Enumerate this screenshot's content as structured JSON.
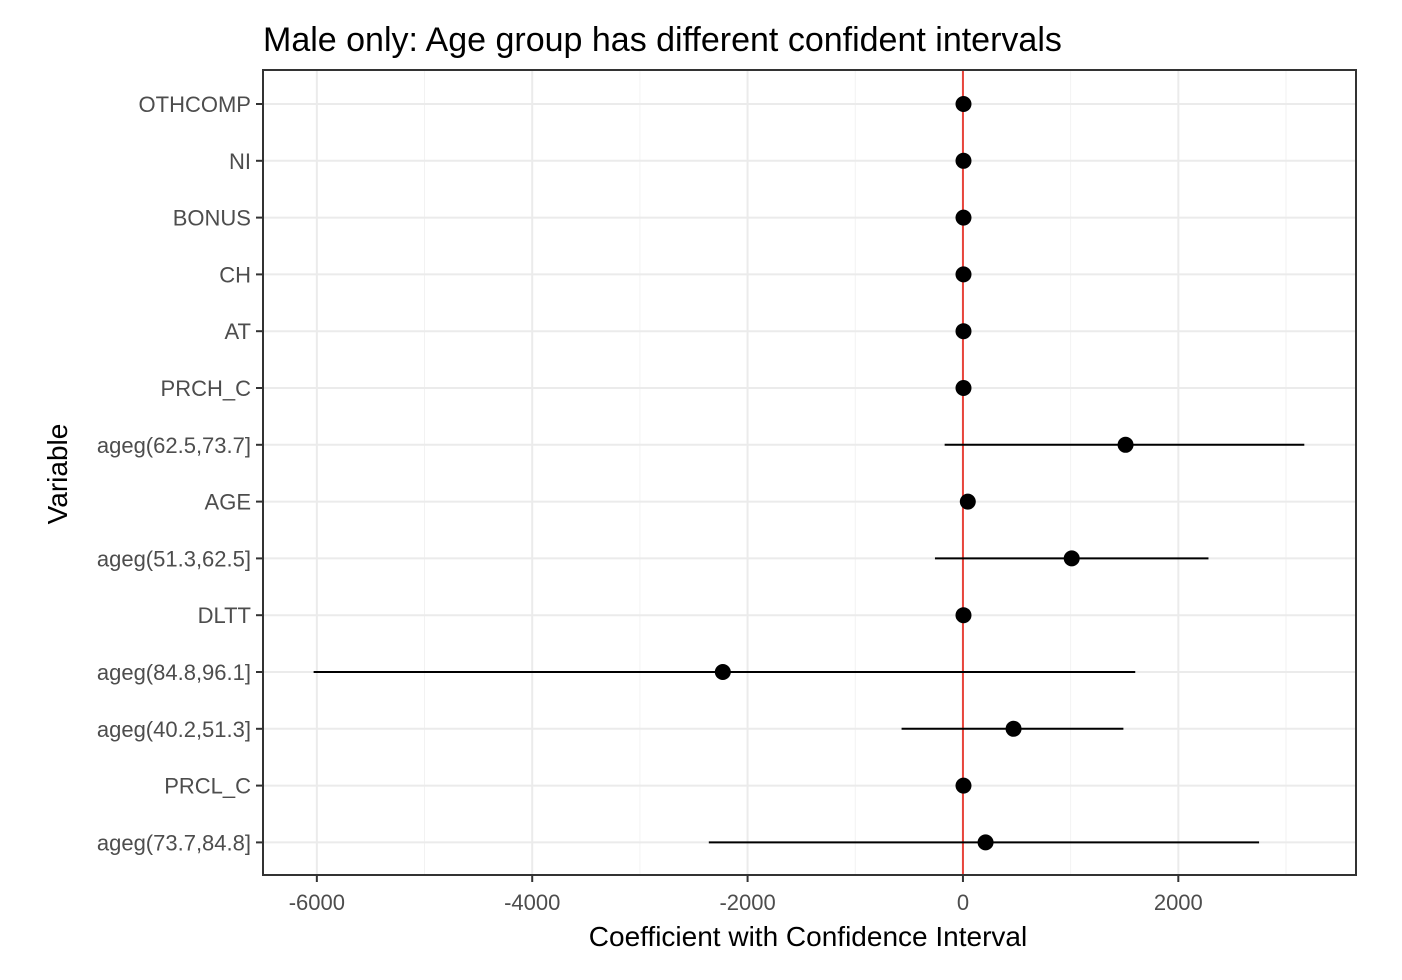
{
  "chart_data": {
    "type": "scatter",
    "subtype": "coefficient-plot-with-confidence-intervals",
    "title": "Male only: Age group has different confident intervals",
    "xlabel": "Coefficient with Confidence Interval",
    "ylabel": "Variable",
    "xlim": [
      -6500,
      3650
    ],
    "x_ticks": [
      -6000,
      -4000,
      -2000,
      0,
      2000
    ],
    "x_tick_labels": [
      "-6000",
      "-4000",
      "-2000",
      "0",
      "2000"
    ],
    "grid": true,
    "legend": "none",
    "reference_line": {
      "x": 0,
      "color": "#e8453c"
    },
    "colors": {
      "point": "#000000",
      "interval": "#000000",
      "grid": "#ebebeb",
      "panel_border": "#333333"
    },
    "points": [
      {
        "variable": "OTHCOMP",
        "estimate": 5,
        "lower": 5,
        "upper": 5
      },
      {
        "variable": "NI",
        "estimate": 5,
        "lower": 5,
        "upper": 5
      },
      {
        "variable": "BONUS",
        "estimate": 5,
        "lower": 5,
        "upper": 5
      },
      {
        "variable": "CH",
        "estimate": 5,
        "lower": 5,
        "upper": 5
      },
      {
        "variable": "AT",
        "estimate": 5,
        "lower": 5,
        "upper": 5
      },
      {
        "variable": "PRCH_C",
        "estimate": 5,
        "lower": 5,
        "upper": 5
      },
      {
        "variable": "ageg(62.5,73.7]",
        "estimate": 1510,
        "lower": -170,
        "upper": 3170
      },
      {
        "variable": "AGE",
        "estimate": 45,
        "lower": 45,
        "upper": 45
      },
      {
        "variable": "ageg(51.3,62.5]",
        "estimate": 1010,
        "lower": -260,
        "upper": 2280
      },
      {
        "variable": "DLTT",
        "estimate": 5,
        "lower": 5,
        "upper": 5
      },
      {
        "variable": "ageg(84.8,96.1]",
        "estimate": -2230,
        "lower": -6030,
        "upper": 1600
      },
      {
        "variable": "ageg(40.2,51.3]",
        "estimate": 470,
        "lower": -570,
        "upper": 1490
      },
      {
        "variable": "PRCL_C",
        "estimate": 5,
        "lower": 5,
        "upper": 5
      },
      {
        "variable": "ageg(73.7,84.8]",
        "estimate": 210,
        "lower": -2360,
        "upper": 2750
      }
    ]
  }
}
